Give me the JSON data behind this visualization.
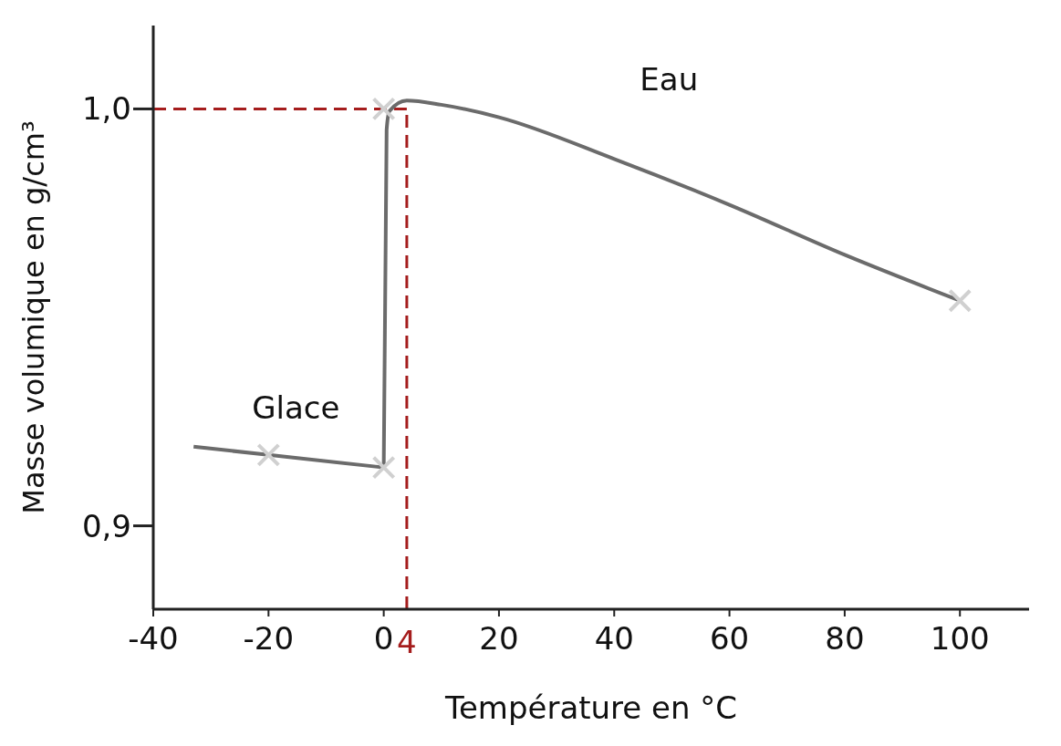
{
  "chart_data": {
    "type": "line",
    "xlabel": "Température en °C",
    "ylabel": "Masse volumique en g/cm³",
    "xlim": [
      -40,
      112
    ],
    "ylim": [
      0.88,
      1.02
    ],
    "xticks": [
      -40,
      -20,
      0,
      20,
      40,
      60,
      80,
      100
    ],
    "yticks": [
      {
        "value": 0.9,
        "label": "0,9"
      },
      {
        "value": 1.0,
        "label": "1,0"
      }
    ],
    "line_style": "solid",
    "series": [
      {
        "name": "Glace",
        "color": "#6b6b6b",
        "x": [
          -33,
          -20,
          0
        ],
        "values": [
          0.919,
          0.917,
          0.914
        ]
      },
      {
        "name": "Eau",
        "color": "#6b6b6b",
        "x": [
          0,
          0.5,
          1,
          4,
          10,
          20,
          40,
          60,
          80,
          100
        ],
        "values": [
          0.914,
          0.995,
          0.9995,
          1.002,
          1.001,
          0.998,
          0.988,
          0.977,
          0.965,
          0.954
        ]
      },
      {
        "type": "scatter",
        "marker": "cross",
        "color": "#d0d0d0",
        "x": [
          -20,
          0,
          0,
          100
        ],
        "values": [
          0.917,
          0.914,
          1.0,
          0.954
        ]
      }
    ],
    "ref_lines": [
      {
        "axis": "x",
        "value": 4,
        "label": "4",
        "color": "#a51d1d",
        "line_style": "dashed"
      },
      {
        "axis": "y",
        "value": 1.0,
        "color": "#a51d1d",
        "line_style": "dashed"
      }
    ]
  }
}
